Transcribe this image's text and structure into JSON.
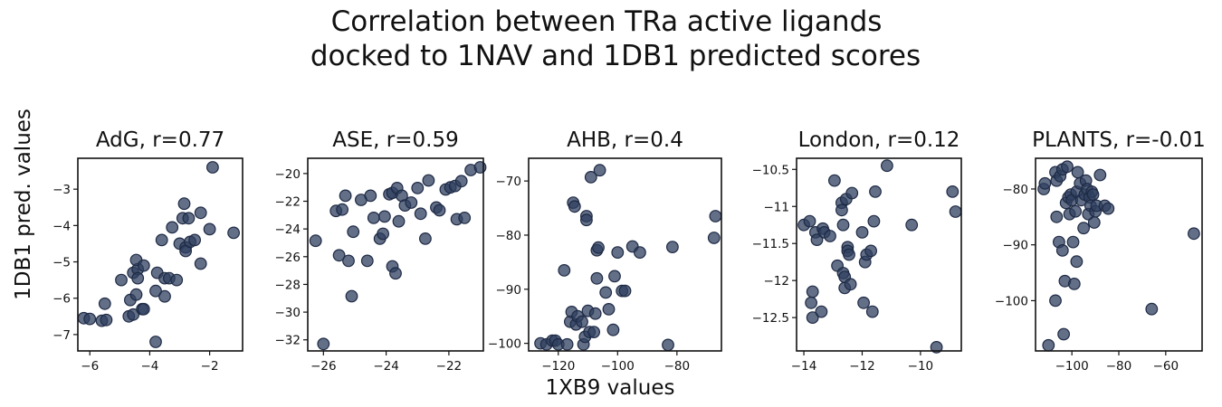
{
  "figure": {
    "title_line1": "Correlation between TRa active ligands",
    "title_line2": "docked to 1NAV and 1DB1 predicted scores",
    "xlabel": "1XB9 values",
    "ylabel": "1DB1 pred. values"
  },
  "colors": {
    "marker": "#2f3f5f",
    "edge": "#1e2a44"
  },
  "chart_data": [
    {
      "type": "scatter",
      "title": "AdG, r=0.77",
      "xlim": [
        -6.4,
        -0.9
      ],
      "ylim": [
        -7.45,
        -2.15
      ],
      "xticks": [
        -6,
        -4,
        -2
      ],
      "yticks": [
        -7,
        -6,
        -5,
        -4,
        -3
      ],
      "points": [
        [
          -6.2,
          -6.55
        ],
        [
          -6.0,
          -6.57
        ],
        [
          -5.6,
          -6.62
        ],
        [
          -5.45,
          -6.6
        ],
        [
          -5.5,
          -6.15
        ],
        [
          -4.95,
          -5.5
        ],
        [
          -4.7,
          -6.5
        ],
        [
          -4.65,
          -6.05
        ],
        [
          -4.55,
          -6.45
        ],
        [
          -4.55,
          -5.3
        ],
        [
          -4.4,
          -5.2
        ],
        [
          -4.45,
          -4.95
        ],
        [
          -4.4,
          -5.45
        ],
        [
          -4.45,
          -5.9
        ],
        [
          -4.2,
          -5.1
        ],
        [
          -4.25,
          -6.3
        ],
        [
          -4.2,
          -6.3
        ],
        [
          -3.8,
          -7.2
        ],
        [
          -3.75,
          -5.3
        ],
        [
          -3.8,
          -5.8
        ],
        [
          -3.6,
          -4.4
        ],
        [
          -3.5,
          -5.95
        ],
        [
          -3.5,
          -5.45
        ],
        [
          -3.35,
          -5.45
        ],
        [
          -3.25,
          -4.05
        ],
        [
          -3.1,
          -5.5
        ],
        [
          -3.0,
          -4.5
        ],
        [
          -2.9,
          -3.8
        ],
        [
          -2.8,
          -4.6
        ],
        [
          -2.8,
          -4.7
        ],
        [
          -2.85,
          -3.4
        ],
        [
          -2.65,
          -4.45
        ],
        [
          -2.7,
          -3.8
        ],
        [
          -2.5,
          -4.4
        ],
        [
          -2.3,
          -3.65
        ],
        [
          -2.3,
          -5.05
        ],
        [
          -2.0,
          -4.1
        ],
        [
          -1.9,
          -2.4
        ],
        [
          -1.2,
          -4.2
        ]
      ]
    },
    {
      "type": "scatter",
      "title": "ASE, r=0.59",
      "xlim": [
        -26.5,
        -20.9
      ],
      "ylim": [
        -32.8,
        -18.9
      ],
      "xticks": [
        -26,
        -24,
        -22
      ],
      "yticks": [
        -32,
        -30,
        -28,
        -26,
        -24,
        -22,
        -20
      ],
      "points": [
        [
          -26.0,
          -32.3
        ],
        [
          -26.25,
          -24.85
        ],
        [
          -25.6,
          -22.7
        ],
        [
          -25.4,
          -22.6
        ],
        [
          -25.3,
          -21.6
        ],
        [
          -25.5,
          -25.9
        ],
        [
          -25.2,
          -26.3
        ],
        [
          -25.1,
          -28.85
        ],
        [
          -25.05,
          -24.2
        ],
        [
          -24.8,
          -21.9
        ],
        [
          -24.5,
          -21.6
        ],
        [
          -24.6,
          -26.3
        ],
        [
          -24.4,
          -23.2
        ],
        [
          -24.2,
          -24.7
        ],
        [
          -24.1,
          -24.35
        ],
        [
          -24.05,
          -23.1
        ],
        [
          -23.9,
          -21.5
        ],
        [
          -23.8,
          -21.4
        ],
        [
          -23.8,
          -26.7
        ],
        [
          -23.7,
          -27.2
        ],
        [
          -23.6,
          -23.45
        ],
        [
          -23.65,
          -21.05
        ],
        [
          -23.5,
          -21.6
        ],
        [
          -23.4,
          -22.3
        ],
        [
          -23.2,
          -22.1
        ],
        [
          -23.0,
          -21.05
        ],
        [
          -22.9,
          -22.9
        ],
        [
          -22.75,
          -24.7
        ],
        [
          -22.65,
          -20.5
        ],
        [
          -22.4,
          -22.45
        ],
        [
          -22.3,
          -22.65
        ],
        [
          -22.1,
          -21.15
        ],
        [
          -21.95,
          -21.0
        ],
        [
          -21.8,
          -20.9
        ],
        [
          -21.75,
          -23.3
        ],
        [
          -21.5,
          -23.2
        ],
        [
          -21.6,
          -20.55
        ],
        [
          -21.3,
          -19.75
        ],
        [
          -21.0,
          -19.55
        ]
      ]
    },
    {
      "type": "scatter",
      "title": "AHB, r=0.4",
      "xlim": [
        -130.0,
        -65.0
      ],
      "ylim": [
        -101.4,
        -65.8
      ],
      "xticks": [
        -120,
        -100,
        -80
      ],
      "yticks": [
        -100,
        -90,
        -80,
        -70
      ],
      "points": [
        [
          -126.0,
          -100.0
        ],
        [
          -124.0,
          -100.2
        ],
        [
          -122.0,
          -99.5
        ],
        [
          -121.0,
          -99.5
        ],
        [
          -120.0,
          -100.2
        ],
        [
          -118.0,
          -86.5
        ],
        [
          -117.0,
          -100.2
        ],
        [
          -116.0,
          -96.0
        ],
        [
          -115.5,
          -94.2
        ],
        [
          -115.0,
          -74.0
        ],
        [
          -114.5,
          -74.7
        ],
        [
          -114.0,
          -96.5
        ],
        [
          -113.5,
          -95.0
        ],
        [
          -112.0,
          -96.0
        ],
        [
          -111.5,
          -100.2
        ],
        [
          -111.0,
          -98.8
        ],
        [
          -110.5,
          -76.5
        ],
        [
          -110.5,
          -77.2
        ],
        [
          -110.0,
          -94.0
        ],
        [
          -109.5,
          -97.9
        ],
        [
          -109.0,
          -69.3
        ],
        [
          -108.0,
          -97.9
        ],
        [
          -107.5,
          -94.5
        ],
        [
          -107.0,
          -82.8
        ],
        [
          -107.0,
          -88.0
        ],
        [
          -106.5,
          -82.3
        ],
        [
          -106.0,
          -68.0
        ],
        [
          -104.0,
          -90.6
        ],
        [
          -103.0,
          -93.7
        ],
        [
          -101.5,
          -97.5
        ],
        [
          -101.0,
          -87.6
        ],
        [
          -100.0,
          -83.2
        ],
        [
          -98.5,
          -90.3
        ],
        [
          -97.5,
          -90.3
        ],
        [
          -95.0,
          -82.1
        ],
        [
          -92.5,
          -83.2
        ],
        [
          -83.0,
          -100.3
        ],
        [
          -81.5,
          -82.2
        ],
        [
          -67.0,
          -76.5
        ],
        [
          -67.5,
          -80.5
        ]
      ]
    },
    {
      "type": "scatter",
      "title": "London, r=0.12",
      "xlim": [
        -14.25,
        -8.6
      ],
      "ylim": [
        -12.95,
        -10.35
      ],
      "xticks": [
        -14,
        -12,
        -10
      ],
      "yticks": [
        -12.5,
        -12.0,
        -11.5,
        -11.0,
        -10.5
      ],
      "points": [
        [
          -14.0,
          -11.25
        ],
        [
          -13.8,
          -11.2
        ],
        [
          -13.75,
          -12.3
        ],
        [
          -13.7,
          -12.5
        ],
        [
          -13.7,
          -12.15
        ],
        [
          -13.6,
          -11.35
        ],
        [
          -13.55,
          -11.45
        ],
        [
          -13.4,
          -12.42
        ],
        [
          -13.35,
          -11.3
        ],
        [
          -13.3,
          -11.35
        ],
        [
          -13.1,
          -11.4
        ],
        [
          -12.95,
          -10.65
        ],
        [
          -12.85,
          -11.8
        ],
        [
          -12.7,
          -10.95
        ],
        [
          -12.7,
          -11.05
        ],
        [
          -12.65,
          -11.25
        ],
        [
          -12.65,
          -11.9
        ],
        [
          -12.6,
          -12.1
        ],
        [
          -12.6,
          -11.95
        ],
        [
          -12.55,
          -10.9
        ],
        [
          -12.5,
          -11.55
        ],
        [
          -12.5,
          -11.6
        ],
        [
          -12.45,
          -11.65
        ],
        [
          -12.4,
          -12.05
        ],
        [
          -12.35,
          -10.82
        ],
        [
          -12.0,
          -11.35
        ],
        [
          -11.95,
          -12.3
        ],
        [
          -11.9,
          -11.75
        ],
        [
          -11.85,
          -11.65
        ],
        [
          -11.7,
          -11.6
        ],
        [
          -11.65,
          -12.42
        ],
        [
          -11.6,
          -11.2
        ],
        [
          -11.55,
          -10.8
        ],
        [
          -11.15,
          -10.45
        ],
        [
          -10.3,
          -11.25
        ],
        [
          -9.45,
          -12.9
        ],
        [
          -8.9,
          -10.8
        ],
        [
          -8.8,
          -11.07
        ]
      ]
    },
    {
      "type": "scatter",
      "title": "PLANTS, r=-0.01",
      "xlim": [
        -115.5,
        -44.5
      ],
      "ylim": [
        -109.0,
        -74.5
      ],
      "xticks": [
        -100,
        -80,
        -60
      ],
      "yticks": [
        -100,
        -90,
        -80
      ],
      "points": [
        [
          -112.0,
          -80.0
        ],
        [
          -111.5,
          -79.0
        ],
        [
          -110.0,
          -108.0
        ],
        [
          -107.0,
          -77.0
        ],
        [
          -106.5,
          -78.5
        ],
        [
          -107.0,
          -100.0
        ],
        [
          -106.5,
          -85.0
        ],
        [
          -105.5,
          -89.5
        ],
        [
          -105.0,
          -77.7
        ],
        [
          -104.0,
          -76.5
        ],
        [
          -104.0,
          -91.0
        ],
        [
          -103.5,
          -106.0
        ],
        [
          -103.0,
          -96.5
        ],
        [
          -102.5,
          -82.5
        ],
        [
          -102.0,
          -76.0
        ],
        [
          -101.5,
          -81.5
        ],
        [
          -101.0,
          -84.5
        ],
        [
          -100.5,
          -81.0
        ],
        [
          -100.0,
          -82.0
        ],
        [
          -99.5,
          -89.5
        ],
        [
          -99.0,
          -97.0
        ],
        [
          -98.5,
          -84.0
        ],
        [
          -98.0,
          -80.5
        ],
        [
          -98.0,
          -93.0
        ],
        [
          -97.5,
          -77.0
        ],
        [
          -96.5,
          -79.0
        ],
        [
          -96.0,
          -82.0
        ],
        [
          -95.0,
          -87.0
        ],
        [
          -94.5,
          -81.0
        ],
        [
          -94.0,
          -78.5
        ],
        [
          -93.5,
          -80.0
        ],
        [
          -93.0,
          -84.5
        ],
        [
          -92.5,
          -81.5
        ],
        [
          -92.0,
          -83.0
        ],
        [
          -91.5,
          -80.5
        ],
        [
          -91.0,
          -81.0
        ],
        [
          -90.5,
          -86.0
        ],
        [
          -90.0,
          -84.0
        ],
        [
          -89.5,
          -83.0
        ],
        [
          -88.0,
          -77.5
        ],
        [
          -86.0,
          -83.0
        ],
        [
          -84.5,
          -83.5
        ],
        [
          -66.0,
          -101.5
        ],
        [
          -48.0,
          -88.0
        ]
      ]
    }
  ]
}
